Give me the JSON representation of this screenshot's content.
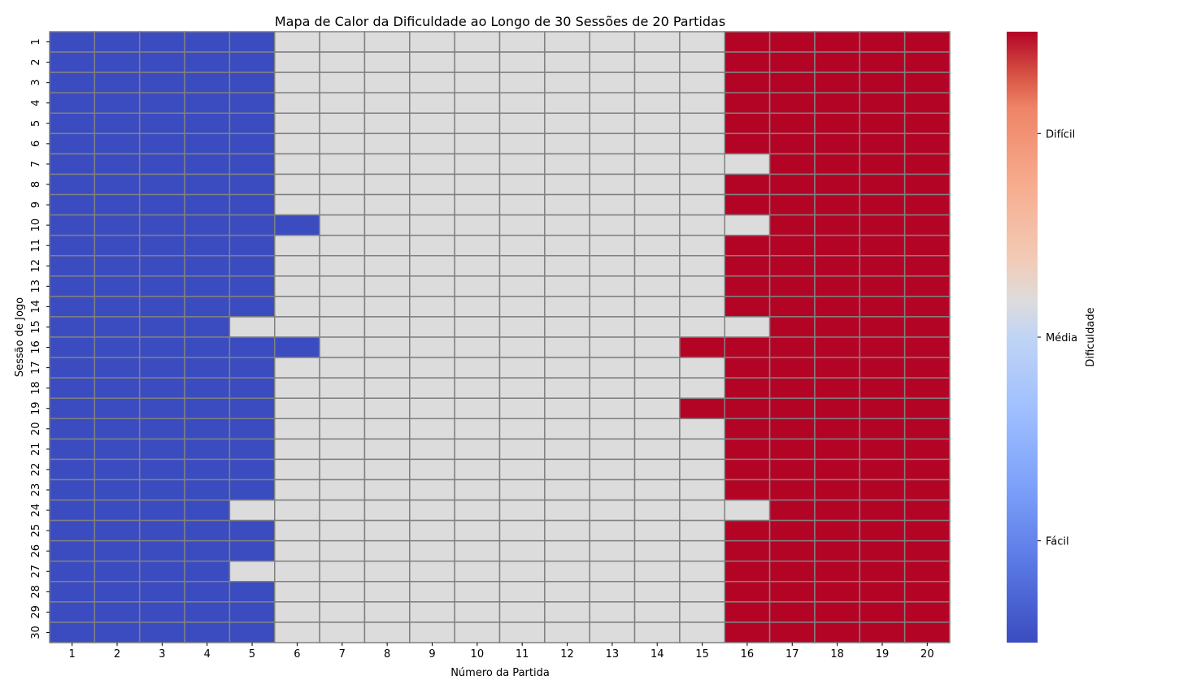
{
  "chart_data": {
    "type": "heatmap",
    "title": "Mapa de Calor da Dificuldade ao Longo de 30 Sessões de 20 Partidas",
    "xlabel": "Número da Partida",
    "ylabel": "Sessão de Jogo",
    "x": [
      "1",
      "2",
      "3",
      "4",
      "5",
      "6",
      "7",
      "8",
      "9",
      "10",
      "11",
      "12",
      "13",
      "14",
      "15",
      "16",
      "17",
      "18",
      "19",
      "20"
    ],
    "y": [
      "1",
      "2",
      "3",
      "4",
      "5",
      "6",
      "7",
      "8",
      "9",
      "10",
      "11",
      "12",
      "13",
      "14",
      "15",
      "16",
      "17",
      "18",
      "19",
      "20",
      "21",
      "22",
      "23",
      "24",
      "25",
      "26",
      "27",
      "28",
      "29",
      "30"
    ],
    "value_encoding": {
      "Fácil": 0,
      "Média": 1,
      "Difícil": 2
    },
    "values": [
      [
        0,
        0,
        0,
        0,
        0,
        1,
        1,
        1,
        1,
        1,
        1,
        1,
        1,
        1,
        1,
        2,
        2,
        2,
        2,
        2
      ],
      [
        0,
        0,
        0,
        0,
        0,
        1,
        1,
        1,
        1,
        1,
        1,
        1,
        1,
        1,
        1,
        2,
        2,
        2,
        2,
        2
      ],
      [
        0,
        0,
        0,
        0,
        0,
        1,
        1,
        1,
        1,
        1,
        1,
        1,
        1,
        1,
        1,
        2,
        2,
        2,
        2,
        2
      ],
      [
        0,
        0,
        0,
        0,
        0,
        1,
        1,
        1,
        1,
        1,
        1,
        1,
        1,
        1,
        1,
        2,
        2,
        2,
        2,
        2
      ],
      [
        0,
        0,
        0,
        0,
        0,
        1,
        1,
        1,
        1,
        1,
        1,
        1,
        1,
        1,
        1,
        2,
        2,
        2,
        2,
        2
      ],
      [
        0,
        0,
        0,
        0,
        0,
        1,
        1,
        1,
        1,
        1,
        1,
        1,
        1,
        1,
        1,
        2,
        2,
        2,
        2,
        2
      ],
      [
        0,
        0,
        0,
        0,
        0,
        1,
        1,
        1,
        1,
        1,
        1,
        1,
        1,
        1,
        1,
        1,
        2,
        2,
        2,
        2
      ],
      [
        0,
        0,
        0,
        0,
        0,
        1,
        1,
        1,
        1,
        1,
        1,
        1,
        1,
        1,
        1,
        2,
        2,
        2,
        2,
        2
      ],
      [
        0,
        0,
        0,
        0,
        0,
        1,
        1,
        1,
        1,
        1,
        1,
        1,
        1,
        1,
        1,
        2,
        2,
        2,
        2,
        2
      ],
      [
        0,
        0,
        0,
        0,
        0,
        0,
        1,
        1,
        1,
        1,
        1,
        1,
        1,
        1,
        1,
        1,
        2,
        2,
        2,
        2
      ],
      [
        0,
        0,
        0,
        0,
        0,
        1,
        1,
        1,
        1,
        1,
        1,
        1,
        1,
        1,
        1,
        2,
        2,
        2,
        2,
        2
      ],
      [
        0,
        0,
        0,
        0,
        0,
        1,
        1,
        1,
        1,
        1,
        1,
        1,
        1,
        1,
        1,
        2,
        2,
        2,
        2,
        2
      ],
      [
        0,
        0,
        0,
        0,
        0,
        1,
        1,
        1,
        1,
        1,
        1,
        1,
        1,
        1,
        1,
        2,
        2,
        2,
        2,
        2
      ],
      [
        0,
        0,
        0,
        0,
        0,
        1,
        1,
        1,
        1,
        1,
        1,
        1,
        1,
        1,
        1,
        2,
        2,
        2,
        2,
        2
      ],
      [
        0,
        0,
        0,
        0,
        1,
        1,
        1,
        1,
        1,
        1,
        1,
        1,
        1,
        1,
        1,
        1,
        2,
        2,
        2,
        2
      ],
      [
        0,
        0,
        0,
        0,
        0,
        0,
        1,
        1,
        1,
        1,
        1,
        1,
        1,
        1,
        2,
        2,
        2,
        2,
        2,
        2
      ],
      [
        0,
        0,
        0,
        0,
        0,
        1,
        1,
        1,
        1,
        1,
        1,
        1,
        1,
        1,
        1,
        2,
        2,
        2,
        2,
        2
      ],
      [
        0,
        0,
        0,
        0,
        0,
        1,
        1,
        1,
        1,
        1,
        1,
        1,
        1,
        1,
        1,
        2,
        2,
        2,
        2,
        2
      ],
      [
        0,
        0,
        0,
        0,
        0,
        1,
        1,
        1,
        1,
        1,
        1,
        1,
        1,
        1,
        2,
        2,
        2,
        2,
        2,
        2
      ],
      [
        0,
        0,
        0,
        0,
        0,
        1,
        1,
        1,
        1,
        1,
        1,
        1,
        1,
        1,
        1,
        2,
        2,
        2,
        2,
        2
      ],
      [
        0,
        0,
        0,
        0,
        0,
        1,
        1,
        1,
        1,
        1,
        1,
        1,
        1,
        1,
        1,
        2,
        2,
        2,
        2,
        2
      ],
      [
        0,
        0,
        0,
        0,
        0,
        1,
        1,
        1,
        1,
        1,
        1,
        1,
        1,
        1,
        1,
        2,
        2,
        2,
        2,
        2
      ],
      [
        0,
        0,
        0,
        0,
        0,
        1,
        1,
        1,
        1,
        1,
        1,
        1,
        1,
        1,
        1,
        2,
        2,
        2,
        2,
        2
      ],
      [
        0,
        0,
        0,
        0,
        1,
        1,
        1,
        1,
        1,
        1,
        1,
        1,
        1,
        1,
        1,
        1,
        2,
        2,
        2,
        2
      ],
      [
        0,
        0,
        0,
        0,
        0,
        1,
        1,
        1,
        1,
        1,
        1,
        1,
        1,
        1,
        1,
        2,
        2,
        2,
        2,
        2
      ],
      [
        0,
        0,
        0,
        0,
        0,
        1,
        1,
        1,
        1,
        1,
        1,
        1,
        1,
        1,
        1,
        2,
        2,
        2,
        2,
        2
      ],
      [
        0,
        0,
        0,
        0,
        1,
        1,
        1,
        1,
        1,
        1,
        1,
        1,
        1,
        1,
        1,
        2,
        2,
        2,
        2,
        2
      ],
      [
        0,
        0,
        0,
        0,
        0,
        1,
        1,
        1,
        1,
        1,
        1,
        1,
        1,
        1,
        1,
        2,
        2,
        2,
        2,
        2
      ],
      [
        0,
        0,
        0,
        0,
        0,
        1,
        1,
        1,
        1,
        1,
        1,
        1,
        1,
        1,
        1,
        2,
        2,
        2,
        2,
        2
      ],
      [
        0,
        0,
        0,
        0,
        0,
        1,
        1,
        1,
        1,
        1,
        1,
        1,
        1,
        1,
        1,
        2,
        2,
        2,
        2,
        2
      ]
    ],
    "colors": {
      "Fácil": "#3b4cc0",
      "Média": "#dcdcdc",
      "Difícil": "#b40426"
    },
    "colormap": "coolwarm",
    "cell_border_color": "#808080",
    "colorbar": {
      "label": "Dificuldade",
      "ticks": [
        "Fácil",
        "Média",
        "Difícil"
      ],
      "range": [
        -0.5,
        2.5
      ],
      "tick_values": [
        0,
        1,
        2
      ]
    }
  }
}
